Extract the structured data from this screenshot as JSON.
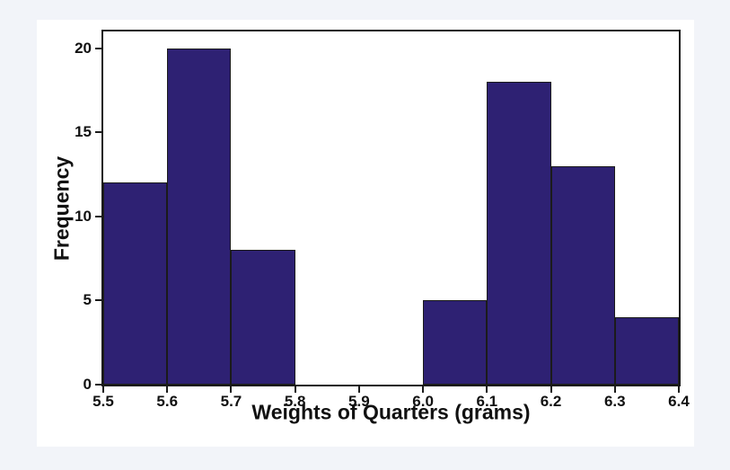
{
  "page": {
    "background": "#f2f4f9",
    "panel_background": "#ffffff"
  },
  "chart_data": {
    "type": "bar",
    "chart_kind": "histogram",
    "title": "",
    "xlabel": "Weights of Quarters (grams)",
    "ylabel": "Frequency",
    "bin_edges": [
      5.5,
      5.6,
      5.7,
      5.8,
      5.9,
      6.0,
      6.1,
      6.2,
      6.3,
      6.4
    ],
    "bin_labels": [
      "5.5",
      "5.6",
      "5.7",
      "5.8",
      "5.9",
      "6.0",
      "6.1",
      "6.2",
      "6.3",
      "6.4"
    ],
    "values": [
      12,
      20,
      8,
      0,
      0,
      5,
      18,
      13,
      4
    ],
    "ylim": [
      0,
      21
    ],
    "yticks": [
      0,
      5,
      10,
      15,
      20
    ],
    "grid": false,
    "legend": "none",
    "bar_color": "#2e2173",
    "bar_border_color": "#1b1b1b",
    "axis_color": "#1b1b1b",
    "text_color": "#111111"
  }
}
